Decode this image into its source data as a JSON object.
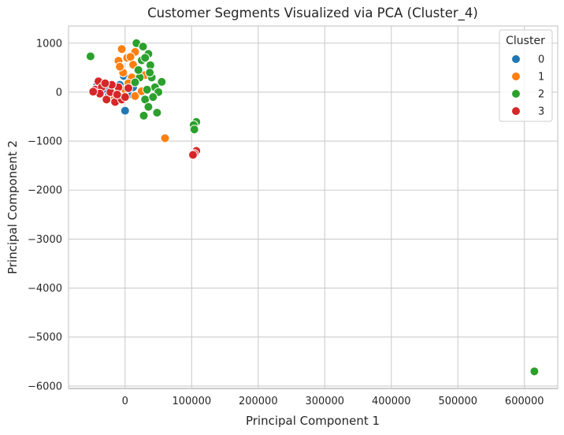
{
  "chart_data": {
    "type": "scatter",
    "title": "Customer Segments Visualized via PCA (Cluster_4)",
    "xlabel": "Principal Component 1",
    "ylabel": "Principal Component 2",
    "xlim": [
      -85000,
      650000
    ],
    "ylim": [
      -6050,
      1350
    ],
    "xticks": [
      0,
      100000,
      200000,
      300000,
      400000,
      500000,
      600000
    ],
    "yticks": [
      1000,
      0,
      -1000,
      -2000,
      -3000,
      -4000,
      -5000,
      -6000
    ],
    "xtick_labels": [
      "0",
      "100000",
      "200000",
      "300000",
      "400000",
      "500000",
      "600000"
    ],
    "ytick_labels": [
      "1000",
      "0",
      "−1000",
      "−2000",
      "−3000",
      "−4000",
      "−5000",
      "−6000"
    ],
    "grid": true,
    "legend": {
      "title": "Cluster",
      "position": "top-right"
    },
    "series": [
      {
        "name": "0",
        "color": "#1f77b4",
        "points": [
          [
            -42000,
            130
          ],
          [
            -30000,
            60
          ],
          [
            -18000,
            20
          ],
          [
            -8000,
            150
          ],
          [
            -2000,
            330
          ],
          [
            0,
            -380
          ],
          [
            5000,
            -50
          ],
          [
            12000,
            100
          ],
          [
            -25000,
            -80
          ],
          [
            8000,
            250
          ]
        ]
      },
      {
        "name": "1",
        "color": "#ff7f0e",
        "points": [
          [
            -5000,
            880
          ],
          [
            15000,
            820
          ],
          [
            -10000,
            640
          ],
          [
            3000,
            700
          ],
          [
            8000,
            720
          ],
          [
            20000,
            460
          ],
          [
            -3000,
            400
          ],
          [
            10000,
            300
          ],
          [
            5000,
            180
          ],
          [
            -15000,
            80
          ],
          [
            15000,
            -80
          ],
          [
            25000,
            20
          ],
          [
            -8000,
            520
          ],
          [
            30000,
            350
          ],
          [
            60000,
            -940
          ],
          [
            0,
            50
          ],
          [
            -20000,
            -120
          ],
          [
            12000,
            560
          ]
        ]
      },
      {
        "name": "2",
        "color": "#2ca02c",
        "points": [
          [
            -52000,
            730
          ],
          [
            17000,
            1000
          ],
          [
            27000,
            930
          ],
          [
            35000,
            780
          ],
          [
            25000,
            650
          ],
          [
            38000,
            550
          ],
          [
            40000,
            300
          ],
          [
            45000,
            100
          ],
          [
            50000,
            0
          ],
          [
            30000,
            -150
          ],
          [
            35000,
            -300
          ],
          [
            48000,
            -420
          ],
          [
            28000,
            -480
          ],
          [
            55000,
            210
          ],
          [
            22000,
            300
          ],
          [
            33000,
            50
          ],
          [
            42000,
            -100
          ],
          [
            107000,
            -610
          ],
          [
            103000,
            -670
          ],
          [
            104000,
            -760
          ],
          [
            615000,
            -5700
          ],
          [
            20000,
            450
          ],
          [
            30000,
            700
          ],
          [
            15000,
            200
          ],
          [
            37000,
            400
          ]
        ]
      },
      {
        "name": "3",
        "color": "#d62728",
        "points": [
          [
            -45000,
            50
          ],
          [
            -40000,
            220
          ],
          [
            -35000,
            100
          ],
          [
            -28000,
            -150
          ],
          [
            -22000,
            0
          ],
          [
            -15000,
            -200
          ],
          [
            -10000,
            100
          ],
          [
            -5000,
            -150
          ],
          [
            0,
            -100
          ],
          [
            5000,
            80
          ],
          [
            -38000,
            -30
          ],
          [
            -20000,
            150
          ],
          [
            -12000,
            -50
          ],
          [
            107000,
            -1200
          ],
          [
            104000,
            -1260
          ],
          [
            102000,
            -1280
          ],
          [
            -30000,
            180
          ],
          [
            -48000,
            10
          ]
        ]
      }
    ]
  }
}
